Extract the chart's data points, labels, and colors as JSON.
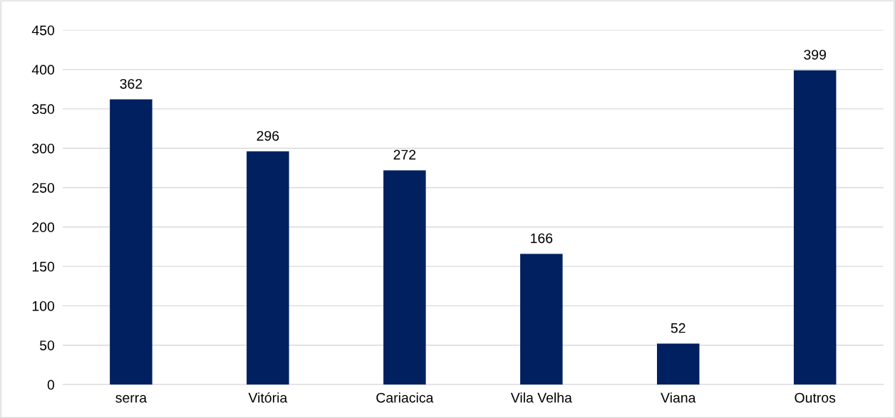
{
  "chart_data": {
    "type": "bar",
    "categories": [
      "serra",
      "Vitória",
      "Cariacica",
      "Vila Velha",
      "Viana",
      "Outros"
    ],
    "values": [
      362,
      296,
      272,
      166,
      52,
      399
    ],
    "color": "#002060",
    "ylim": [
      0,
      450
    ],
    "yticks": [
      0,
      50,
      100,
      150,
      200,
      250,
      300,
      350,
      400,
      450
    ],
    "grid": "y",
    "data_labels": true
  }
}
